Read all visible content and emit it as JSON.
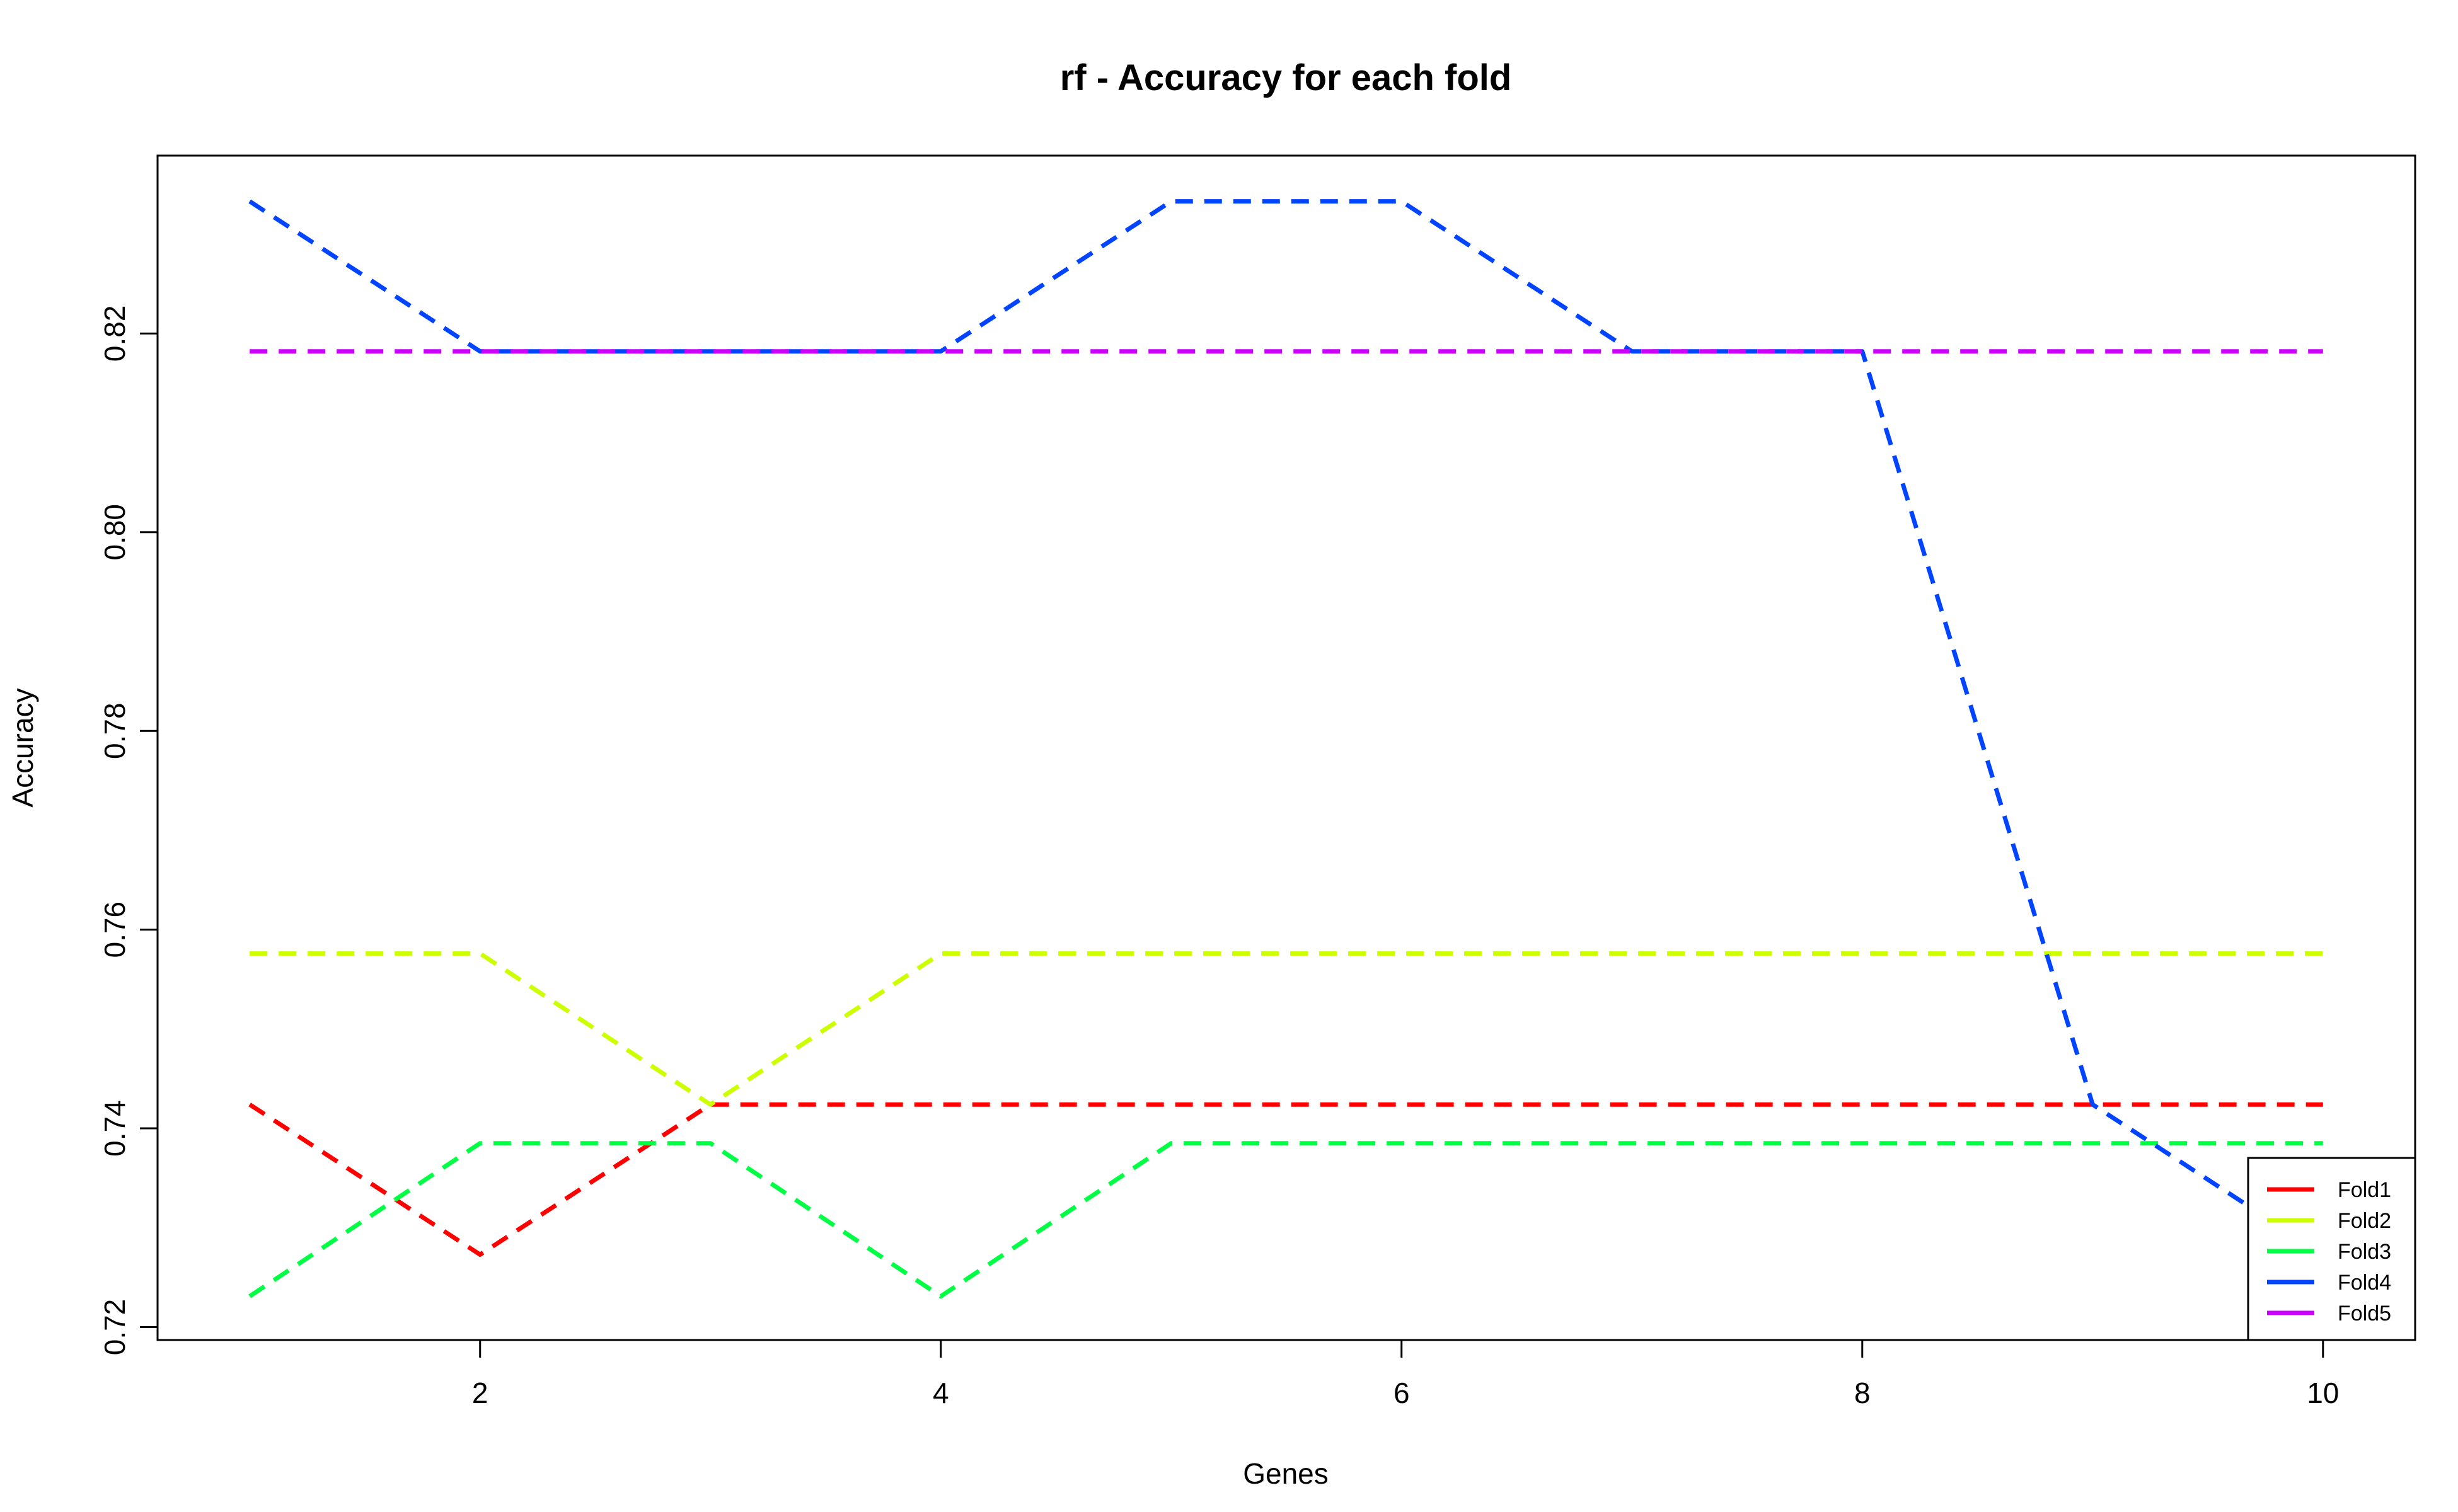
{
  "chart_data": {
    "type": "line",
    "title": "rf - Accuracy for each fold",
    "xlabel": "Genes",
    "ylabel": "Accuracy",
    "xlim": [
      0.6,
      10.4
    ],
    "ylim": [
      0.7187,
      0.8379
    ],
    "x_ticks": [
      2,
      4,
      6,
      8,
      10
    ],
    "y_ticks": [
      0.72,
      0.74,
      0.76,
      0.78,
      0.8,
      0.82
    ],
    "y_tick_labels": [
      "0.72",
      "0.74",
      "0.76",
      "0.78",
      "0.80",
      "0.82"
    ],
    "x": [
      1,
      2,
      3,
      4,
      5,
      6,
      7,
      8,
      9,
      10
    ],
    "grid": false,
    "line_style": "dashed",
    "legend_position": "bottom-right",
    "series": [
      {
        "name": "Fold1",
        "color": "#ff0000",
        "values": [
          0.7424,
          0.7273,
          0.7424,
          0.7424,
          0.7424,
          0.7424,
          0.7424,
          0.7424,
          0.7424,
          0.7424
        ]
      },
      {
        "name": "Fold2",
        "color": "#ccff00",
        "values": [
          0.7576,
          0.7576,
          0.7424,
          0.7576,
          0.7576,
          0.7576,
          0.7576,
          0.7576,
          0.7576,
          0.7576
        ]
      },
      {
        "name": "Fold3",
        "color": "#00ff44",
        "values": [
          0.7231,
          0.7385,
          0.7385,
          0.7231,
          0.7385,
          0.7385,
          0.7385,
          0.7385,
          0.7385,
          0.7385
        ]
      },
      {
        "name": "Fold4",
        "color": "#0044ff",
        "values": [
          0.8333,
          0.8182,
          0.8182,
          0.8182,
          0.8333,
          0.8333,
          0.8182,
          0.8182,
          0.7424,
          0.7273
        ]
      },
      {
        "name": "Fold5",
        "color": "#cc00ff",
        "values": [
          0.8182,
          0.8182,
          0.8182,
          0.8182,
          0.8182,
          0.8182,
          0.8182,
          0.8182,
          0.8182,
          0.8182
        ]
      }
    ]
  }
}
